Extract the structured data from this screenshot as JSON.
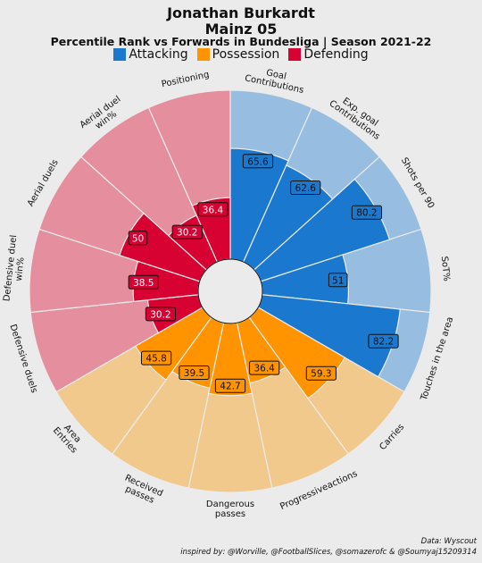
{
  "chart_data": {
    "type": "polar_bar",
    "title": "Jonathan Burkardt",
    "team": "Mainz 05",
    "subtitle": "Percentile Rank vs Forwards in Bundesliga | Season 2021-22",
    "legend": [
      {
        "name": "Attacking",
        "color": "#1a78cf"
      },
      {
        "name": "Possession",
        "color": "#ff9300"
      },
      {
        "name": "Defending",
        "color": "#d70232"
      }
    ],
    "ylim": [
      0,
      100
    ],
    "start_angle_deg": 0,
    "direction": "clockwise",
    "params": [
      {
        "label": "Goal\nContributions",
        "value": 65.6,
        "group": "Attacking"
      },
      {
        "label": "Exp. goal\nContributions",
        "value": 62.6,
        "group": "Attacking"
      },
      {
        "label": "Shots per 90",
        "value": 80.2,
        "group": "Attacking"
      },
      {
        "label": "SoT%",
        "value": 51,
        "group": "Attacking"
      },
      {
        "label": "Touches in the area",
        "value": 82.2,
        "group": "Attacking"
      },
      {
        "label": "Carries",
        "value": 59.3,
        "group": "Possession"
      },
      {
        "label": "Progressive⁠actions",
        "value": 36.4,
        "group": "Possession"
      },
      {
        "label": "Dangerous\npasses",
        "value": 42.7,
        "group": "Possession"
      },
      {
        "label": "Received\npasses",
        "value": 39.5,
        "group": "Possession"
      },
      {
        "label": "Area\nEntries",
        "value": 45.8,
        "group": "Possession"
      },
      {
        "label": "Defensive duels",
        "value": 30.2,
        "group": "Defending"
      },
      {
        "label": "Defensive duel\nwin%",
        "value": 38.5,
        "group": "Defending"
      },
      {
        "label": "Aerial duels",
        "value": 50,
        "group": "Defending"
      },
      {
        "label": "Aerial duel\nwin%",
        "value": 30.2,
        "group": "Defending"
      },
      {
        "label": "Positioning",
        "value": 36.4,
        "group": "Defending"
      }
    ]
  },
  "footer": {
    "line1": "Data: Wyscout",
    "line2": "inspired by: @Worville, @FootballSlices, @somazerofc & @Soumyaj15209314"
  },
  "colors": {
    "Attacking": {
      "dark": "#1a78cf",
      "light": "#97bde0"
    },
    "Possession": {
      "dark": "#ff9300",
      "light": "#f1c98c"
    },
    "Defending": {
      "dark": "#d70232",
      "light": "#e48e9e"
    }
  }
}
